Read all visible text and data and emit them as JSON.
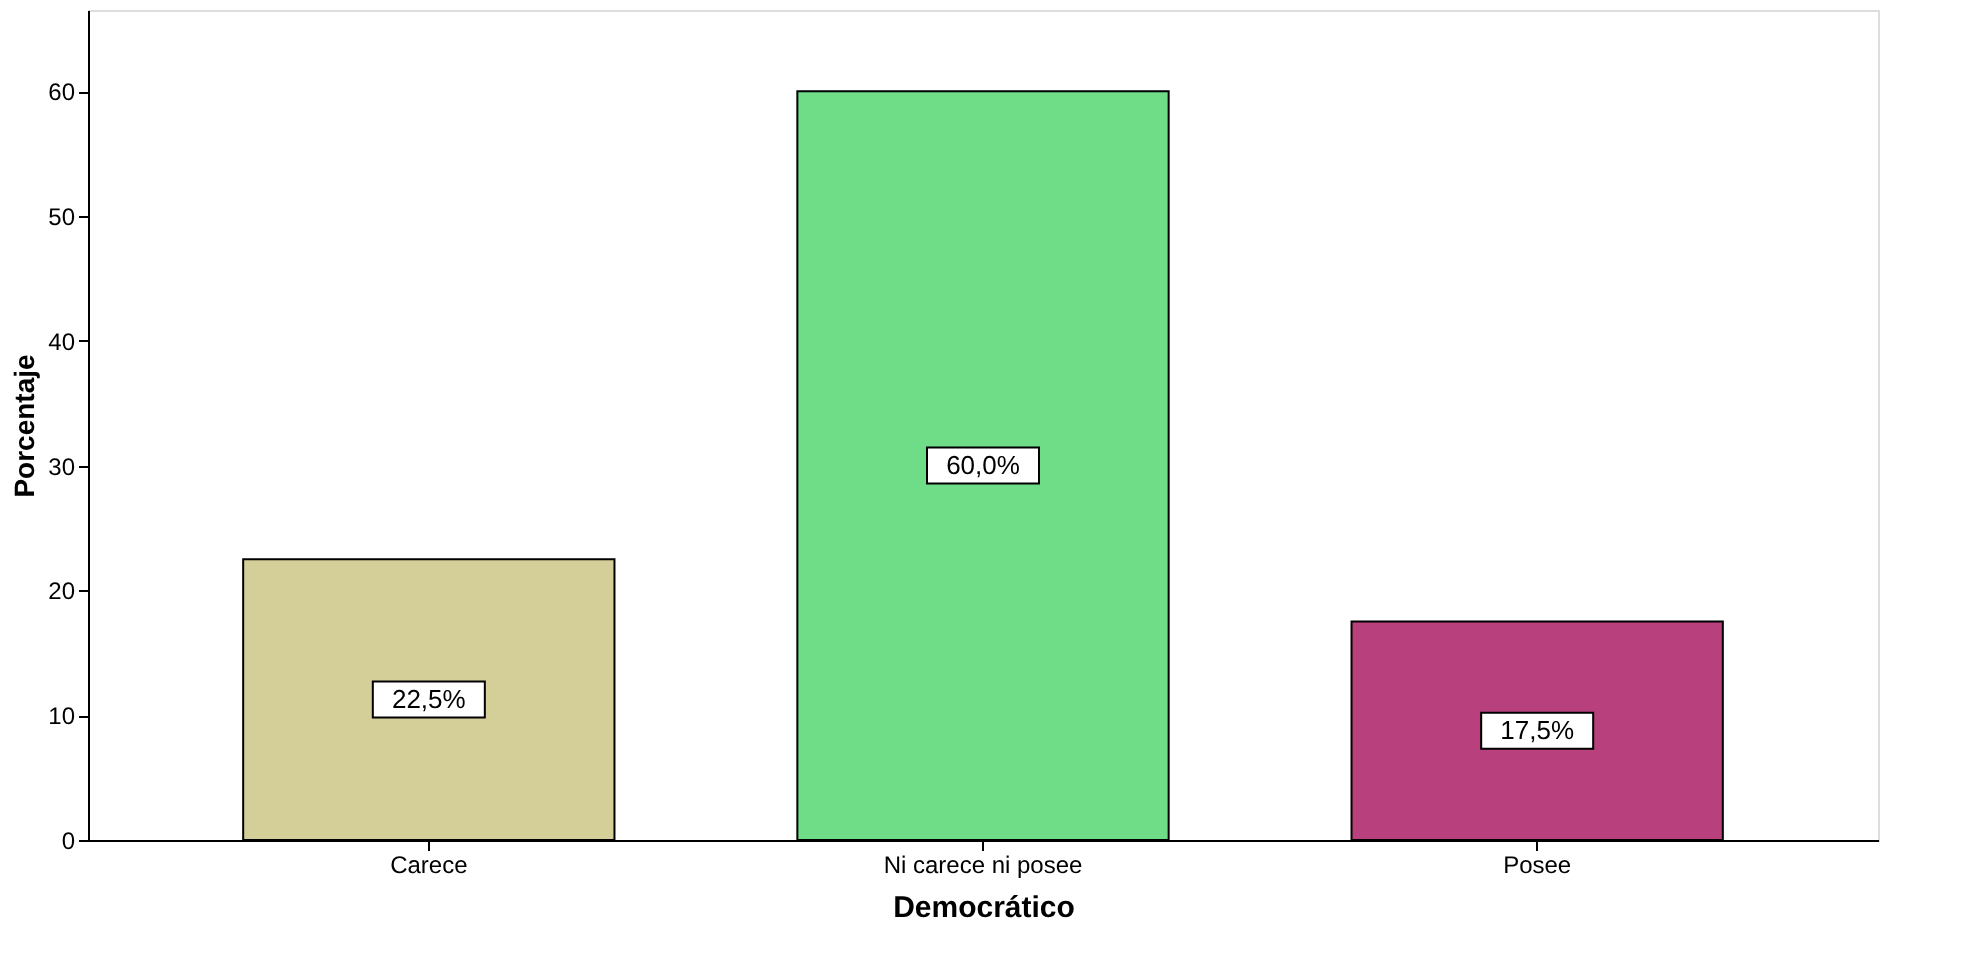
{
  "chart_data": {
    "type": "bar",
    "xlabel": "Democrático",
    "ylabel": "Porcentaje",
    "categories": [
      "Carece",
      "Ni carece ni posee",
      "Posee"
    ],
    "values": [
      22.5,
      60.0,
      17.5
    ],
    "colors": [
      "#d4ce98",
      "#6fdc87",
      "#b8407c"
    ],
    "value_labels": [
      "22,5%",
      "60,0%",
      "17,5%"
    ],
    "ylim": [
      0,
      66.5
    ],
    "yticks": [
      0,
      10,
      20,
      30,
      40,
      50,
      60
    ],
    "grid": false,
    "legend": false
  }
}
